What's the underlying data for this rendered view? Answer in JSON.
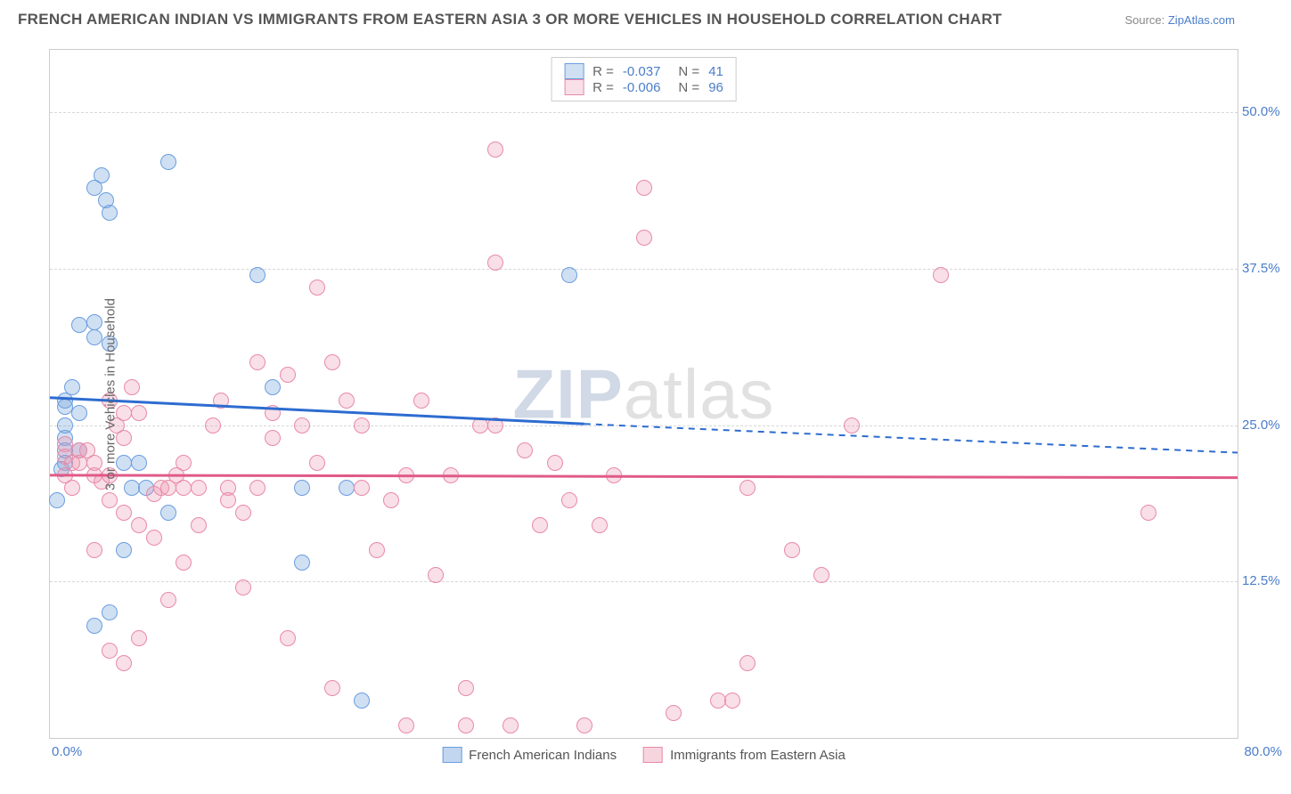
{
  "header": {
    "title": "FRENCH AMERICAN INDIAN VS IMMIGRANTS FROM EASTERN ASIA 3 OR MORE VEHICLES IN HOUSEHOLD CORRELATION CHART",
    "source_prefix": "Source: ",
    "source_link": "ZipAtlas.com"
  },
  "watermark": {
    "zip": "ZIP",
    "atlas": "atlas"
  },
  "chart": {
    "type": "scatter",
    "background_color": "#ffffff",
    "grid_color": "#d8d8d8",
    "border_color": "#cccccc",
    "xlim": [
      0,
      80
    ],
    "ylim": [
      0,
      55
    ],
    "y_ticks": [
      12.5,
      25.0,
      37.5,
      50.0
    ],
    "y_tick_labels": [
      "12.5%",
      "25.0%",
      "37.5%",
      "50.0%"
    ],
    "x_tick_left": "0.0%",
    "x_tick_right": "80.0%",
    "y_axis_label": "3 or more Vehicles in Household",
    "marker_radius": 9,
    "marker_stroke_width": 1.5,
    "series": [
      {
        "id": "blue",
        "name": "French American Indians",
        "fill": "rgba(120, 165, 220, 0.35)",
        "stroke": "#6a9de0",
        "r_value": "-0.037",
        "n_value": "41",
        "trend": {
          "y_start": 27.2,
          "y_end_solid_x": 36,
          "y_end_solid": 25.1,
          "y_end": 22.8,
          "stroke": "#2d6cd0",
          "width": 3
        },
        "points": [
          [
            1,
            27
          ],
          [
            1,
            26.5
          ],
          [
            1,
            25
          ],
          [
            1,
            24
          ],
          [
            1,
            23
          ],
          [
            1,
            22
          ],
          [
            1.5,
            28
          ],
          [
            2,
            26
          ],
          [
            2,
            23
          ],
          [
            0.5,
            19
          ],
          [
            0.8,
            21.5
          ],
          [
            2,
            33
          ],
          [
            3,
            33.2
          ],
          [
            3.5,
            45
          ],
          [
            3,
            44
          ],
          [
            3.8,
            43
          ],
          [
            4,
            42
          ],
          [
            8,
            46
          ],
          [
            3,
            32
          ],
          [
            4,
            31.5
          ],
          [
            5,
            22
          ],
          [
            5,
            15
          ],
          [
            5.5,
            20
          ],
          [
            6,
            22
          ],
          [
            6.5,
            20
          ],
          [
            8,
            18
          ],
          [
            4,
            10
          ],
          [
            3,
            9
          ],
          [
            14,
            37
          ],
          [
            15,
            28
          ],
          [
            17,
            20
          ],
          [
            17,
            14
          ],
          [
            20,
            20
          ],
          [
            21,
            3
          ],
          [
            35,
            37
          ]
        ]
      },
      {
        "id": "pink",
        "name": "Immigrants from Eastern Asia",
        "fill": "rgba(235, 150, 175, 0.30)",
        "stroke": "#e88aa8",
        "r_value": "-0.006",
        "n_value": "96",
        "trend": {
          "y_start": 21.0,
          "y_end_solid_x": 80,
          "y_end_solid": 20.8,
          "y_end": 20.8,
          "stroke": "#e05a88",
          "width": 3
        },
        "points": [
          [
            1,
            23.5
          ],
          [
            1,
            22.5
          ],
          [
            1.5,
            22
          ],
          [
            2,
            23
          ],
          [
            2,
            22
          ],
          [
            2.5,
            23
          ],
          [
            3,
            22
          ],
          [
            3,
            21
          ],
          [
            1,
            21
          ],
          [
            1.5,
            20
          ],
          [
            3.5,
            20.5
          ],
          [
            4,
            27
          ],
          [
            4,
            21
          ],
          [
            4.5,
            25
          ],
          [
            5,
            24
          ],
          [
            5,
            26
          ],
          [
            5.5,
            28
          ],
          [
            6,
            26
          ],
          [
            4,
            19
          ],
          [
            5,
            18
          ],
          [
            6,
            17
          ],
          [
            7,
            19.5
          ],
          [
            7.5,
            20
          ],
          [
            8,
            20
          ],
          [
            8.5,
            21
          ],
          [
            9,
            22
          ],
          [
            9,
            20
          ],
          [
            10,
            20
          ],
          [
            3,
            15
          ],
          [
            4,
            7
          ],
          [
            5,
            6
          ],
          [
            6,
            8
          ],
          [
            7,
            16
          ],
          [
            8,
            11
          ],
          [
            9,
            14
          ],
          [
            10,
            17
          ],
          [
            11,
            25
          ],
          [
            11.5,
            27
          ],
          [
            12,
            20
          ],
          [
            12,
            19
          ],
          [
            13,
            18
          ],
          [
            13,
            12
          ],
          [
            14,
            20
          ],
          [
            14,
            30
          ],
          [
            15,
            24
          ],
          [
            15,
            26
          ],
          [
            16,
            29
          ],
          [
            16,
            8
          ],
          [
            17,
            25
          ],
          [
            18,
            36
          ],
          [
            18,
            22
          ],
          [
            19,
            30
          ],
          [
            19,
            4
          ],
          [
            20,
            27
          ],
          [
            21,
            20
          ],
          [
            21,
            25
          ],
          [
            22,
            15
          ],
          [
            23,
            19
          ],
          [
            24,
            1
          ],
          [
            24,
            21
          ],
          [
            25,
            27
          ],
          [
            26,
            13
          ],
          [
            27,
            21
          ],
          [
            28,
            4
          ],
          [
            28,
            1
          ],
          [
            29,
            25
          ],
          [
            30,
            47
          ],
          [
            30,
            38
          ],
          [
            30,
            25
          ],
          [
            31,
            1
          ],
          [
            32,
            23
          ],
          [
            33,
            17
          ],
          [
            34,
            22
          ],
          [
            35,
            19
          ],
          [
            36,
            1
          ],
          [
            37,
            17
          ],
          [
            38,
            21
          ],
          [
            40,
            44
          ],
          [
            40,
            40
          ],
          [
            42,
            2
          ],
          [
            45,
            3
          ],
          [
            46,
            3
          ],
          [
            47,
            6
          ],
          [
            54,
            25
          ],
          [
            50,
            15
          ],
          [
            52,
            13
          ],
          [
            60,
            37
          ],
          [
            74,
            18
          ],
          [
            47,
            20
          ]
        ]
      }
    ]
  },
  "legend_top": {
    "r_label": "R =",
    "n_label": "N ="
  },
  "legend_bottom": {
    "items": [
      {
        "label": "French American Indians",
        "fill": "rgba(120, 165, 220, 0.45)",
        "stroke": "#6a9de0"
      },
      {
        "label": "Immigrants from Eastern Asia",
        "fill": "rgba(235, 150, 175, 0.40)",
        "stroke": "#e88aa8"
      }
    ]
  }
}
